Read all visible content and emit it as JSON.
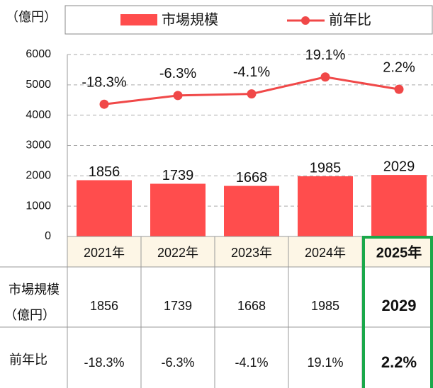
{
  "chart_data": {
    "type": "bar",
    "unit": "（億円）",
    "categories": [
      "2021年",
      "2022年",
      "2023年",
      "2024年",
      "2025年"
    ],
    "series": [
      {
        "name": "市場規模",
        "color": "#ff4d4d",
        "values": [
          1856,
          1739,
          1668,
          1985,
          2029
        ]
      },
      {
        "name": "前年比",
        "color": "#f04848",
        "type": "line",
        "axis": "y2",
        "values": [
          -18.3,
          -6.3,
          -4.1,
          19.1,
          2.2
        ],
        "value_labels": [
          "-18.3%",
          "-6.3%",
          "-4.1%",
          "19.1%",
          "2.2%"
        ]
      }
    ],
    "ylim": [
      0,
      6000
    ],
    "yticks": [
      0,
      1000,
      2000,
      3000,
      4000,
      5000,
      6000
    ],
    "y2lim": [
      -200,
      50
    ],
    "grid": true,
    "legend": "top",
    "highlight_last": true,
    "highlight_color": "#1aa84a",
    "header_fill": "#fdf6e6"
  }
}
